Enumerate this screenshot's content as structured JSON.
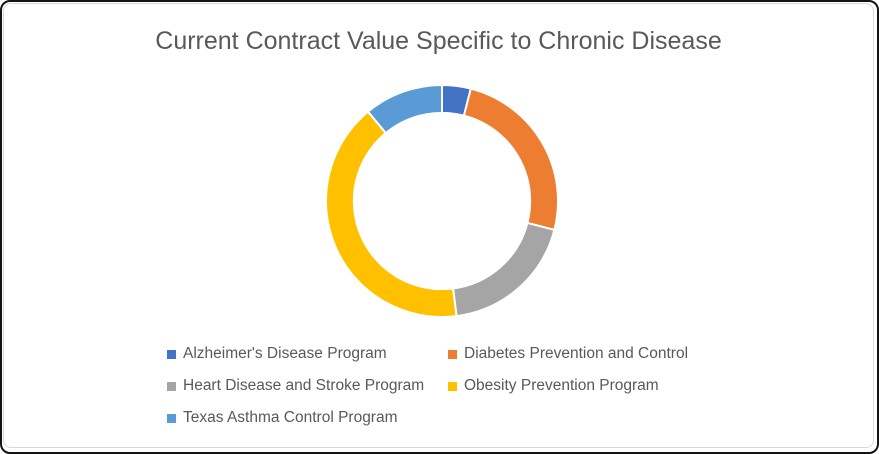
{
  "frame": {
    "background": "#FFFFFF",
    "outer_border_color": "#141414",
    "inner_border_color": "#D9D9D9"
  },
  "chart_data": {
    "type": "pie",
    "variant": "doughnut",
    "title": "Current Contract Value Specific to Chronic Disease",
    "title_color": "#595959",
    "categories": [
      "Alzheimer's Disease Program",
      "Diabetes Prevention and Control",
      "Heart Disease and Stroke Program",
      "Obesity Prevention Program",
      "Texas Asthma Control Program"
    ],
    "values": [
      4,
      25,
      19,
      41,
      11
    ],
    "values_unit": "percent of ring, estimated from arc angles (no data labels shown)",
    "colors": [
      "#4472C4",
      "#ED7D31",
      "#A5A5A5",
      "#FFC000",
      "#5B9BD5"
    ],
    "start_angle_deg": 0,
    "direction": "clockwise",
    "donut_hole_ratio": 0.76,
    "segment_gap_color": "#FFFFFF",
    "legend_position": "bottom",
    "legend_text_color": "#595959",
    "grid": false
  }
}
